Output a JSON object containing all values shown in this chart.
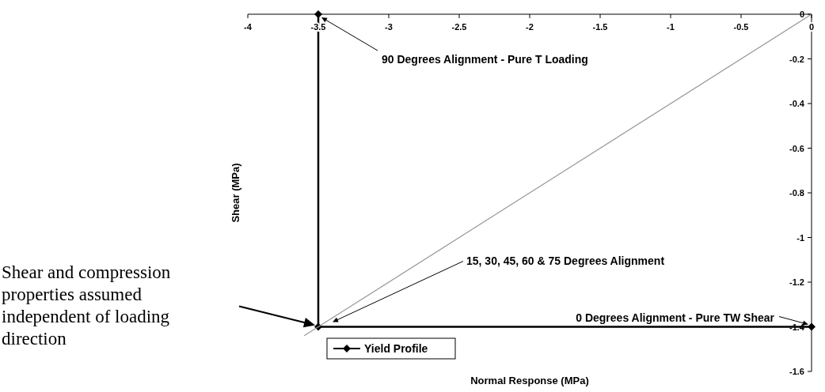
{
  "chart_data": {
    "type": "line",
    "xlabel": "Normal Response (MPa)",
    "ylabel": "Shear (MPa)",
    "xlim": [
      -4,
      0
    ],
    "xticks": [
      -4,
      -3.5,
      -3,
      -2.5,
      -2,
      -1.5,
      -1,
      -0.5,
      0
    ],
    "ylim": [
      -1.6,
      0
    ],
    "yticks": [
      0,
      -0.2,
      -0.4,
      -0.6,
      -0.8,
      -1,
      -1.2,
      -1.4,
      -1.6
    ],
    "marker": "diamond",
    "legend": "bottom left",
    "series": [
      {
        "name": "Yield Profile",
        "color": "#000000",
        "x": [
          -3.5,
          -3.5,
          0
        ],
        "values": [
          0,
          -1.4,
          -1.4
        ]
      },
      {
        "type": "line",
        "color": "#999999",
        "marker": "none",
        "x": [
          0,
          -3.6
        ],
        "values": [
          0,
          -1.44
        ]
      }
    ],
    "annotations": [
      "90 Degrees Alignment - Pure T Loading",
      "15, 30, 45, 60 & 75 Degrees Alignment",
      "0 Degrees Alignment - Pure TW Shear",
      "Shear and compression properties assumed independent of loading direction"
    ]
  }
}
